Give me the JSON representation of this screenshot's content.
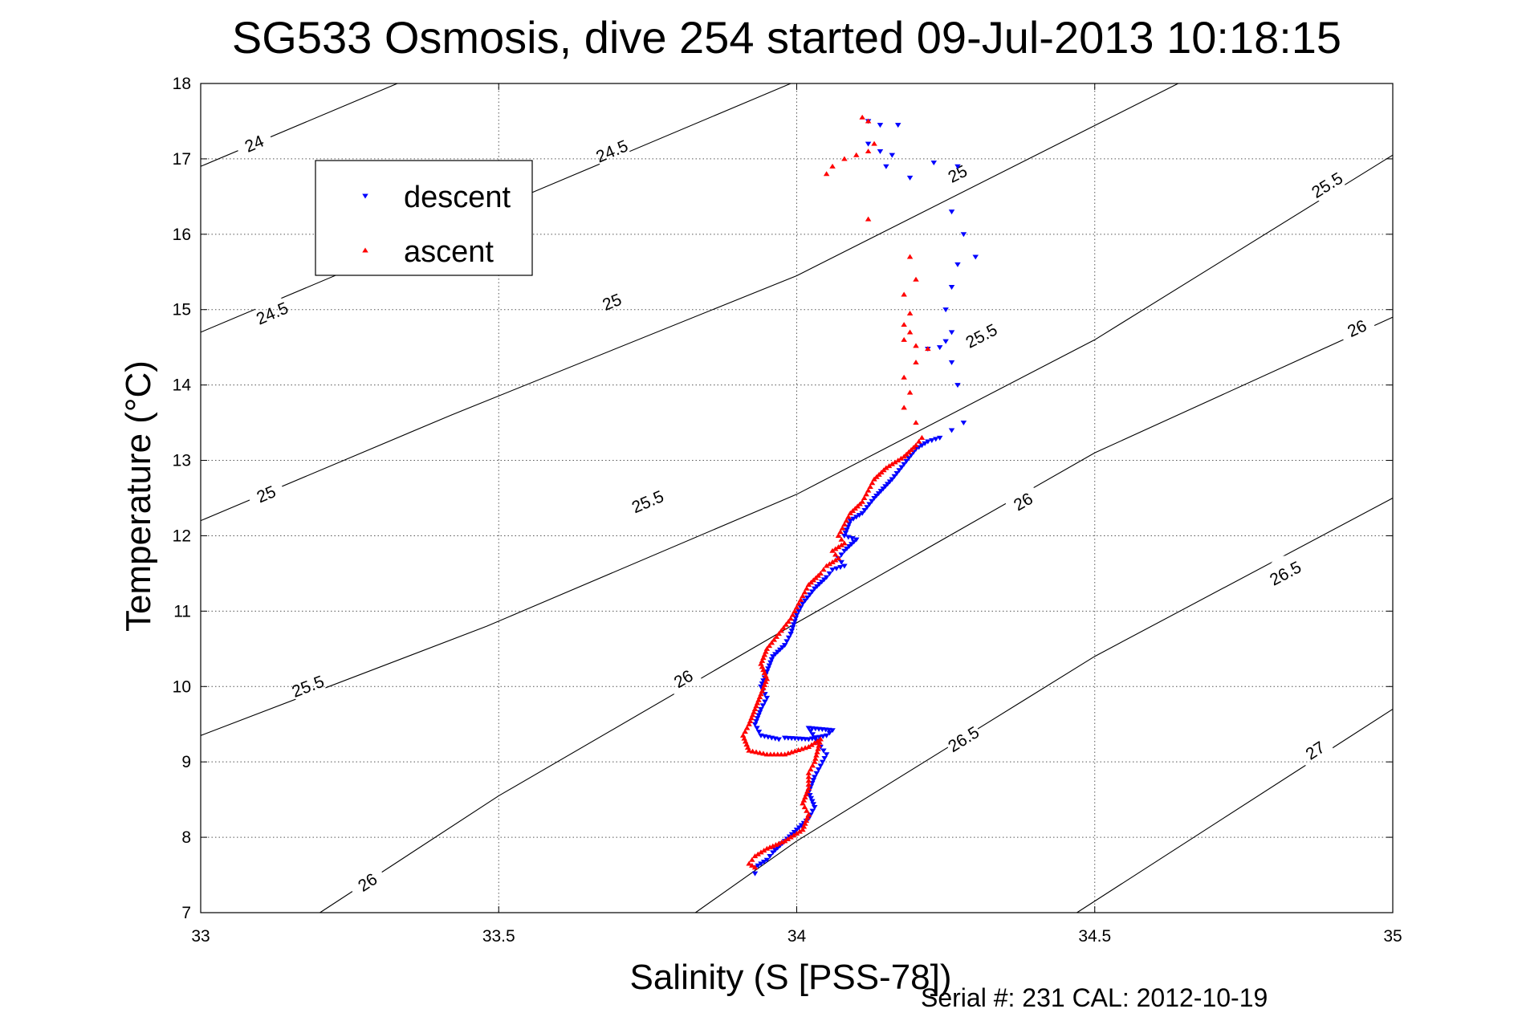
{
  "chart_data": {
    "type": "scatter",
    "title": "SG533 Osmosis, dive 254 started 09-Jul-2013 10:18:15",
    "xlabel": "Salinity (S [PSS-78])",
    "ylabel": "Temperature (°C)",
    "xlim": [
      33,
      35
    ],
    "ylim": [
      7,
      18
    ],
    "x_ticks": [
      "33",
      "33.5",
      "34",
      "34.5",
      "35"
    ],
    "y_ticks": [
      "7",
      "8",
      "9",
      "10",
      "11",
      "12",
      "13",
      "14",
      "15",
      "16",
      "17",
      "18"
    ],
    "grid": true,
    "legend_position": "top-left",
    "footer": "Serial #: 231  CAL: 2012-10-19",
    "series": [
      {
        "name": "descent",
        "color": "#0000ff",
        "marker": "triangle-down",
        "points": [
          [
            34.12,
            17.5
          ],
          [
            34.14,
            17.45
          ],
          [
            34.17,
            17.45
          ],
          [
            34.12,
            17.2
          ],
          [
            34.14,
            17.1
          ],
          [
            34.16,
            17.05
          ],
          [
            34.15,
            16.9
          ],
          [
            34.19,
            16.75
          ],
          [
            34.23,
            16.95
          ],
          [
            34.27,
            16.9
          ],
          [
            34.26,
            16.3
          ],
          [
            34.28,
            16.0
          ],
          [
            34.3,
            15.7
          ],
          [
            34.27,
            15.6
          ],
          [
            34.26,
            15.3
          ],
          [
            34.25,
            15.0
          ],
          [
            34.26,
            14.7
          ],
          [
            34.25,
            14.58
          ],
          [
            34.24,
            14.5
          ],
          [
            34.22,
            14.48
          ],
          [
            34.26,
            14.3
          ],
          [
            34.27,
            14.0
          ],
          [
            34.28,
            13.5
          ],
          [
            34.26,
            13.4
          ],
          [
            34.24,
            13.3
          ],
          [
            34.22,
            13.25
          ],
          [
            34.2,
            13.15
          ],
          [
            34.18,
            12.95
          ],
          [
            34.16,
            12.75
          ],
          [
            34.13,
            12.5
          ],
          [
            34.11,
            12.3
          ],
          [
            34.09,
            12.2
          ],
          [
            34.08,
            12.0
          ],
          [
            34.1,
            11.95
          ],
          [
            34.08,
            11.8
          ],
          [
            34.07,
            11.7
          ],
          [
            34.08,
            11.6
          ],
          [
            34.06,
            11.55
          ],
          [
            34.05,
            11.45
          ],
          [
            34.03,
            11.3
          ],
          [
            34.01,
            11.1
          ],
          [
            34.0,
            10.95
          ],
          [
            33.99,
            10.7
          ],
          [
            33.98,
            10.55
          ],
          [
            33.96,
            10.4
          ],
          [
            33.95,
            10.2
          ],
          [
            33.94,
            10.0
          ],
          [
            33.95,
            9.85
          ],
          [
            33.94,
            9.7
          ],
          [
            33.93,
            9.5
          ],
          [
            33.94,
            9.35
          ],
          [
            33.97,
            9.3
          ],
          [
            33.98,
            9.32
          ],
          [
            34.02,
            9.3
          ],
          [
            34.05,
            9.35
          ],
          [
            34.06,
            9.42
          ],
          [
            34.02,
            9.45
          ],
          [
            34.04,
            9.2
          ],
          [
            34.05,
            9.1
          ],
          [
            34.04,
            8.95
          ],
          [
            34.03,
            8.8
          ],
          [
            34.02,
            8.6
          ],
          [
            34.03,
            8.4
          ],
          [
            34.02,
            8.25
          ],
          [
            34.0,
            8.1
          ],
          [
            33.98,
            7.95
          ],
          [
            33.96,
            7.8
          ],
          [
            33.95,
            7.7
          ],
          [
            33.93,
            7.6
          ],
          [
            33.93,
            7.52
          ]
        ]
      },
      {
        "name": "ascent",
        "color": "#ff0000",
        "marker": "triangle-up",
        "points": [
          [
            34.11,
            17.55
          ],
          [
            34.12,
            17.5
          ],
          [
            34.13,
            17.2
          ],
          [
            34.12,
            17.1
          ],
          [
            34.1,
            17.05
          ],
          [
            34.08,
            17.0
          ],
          [
            34.06,
            16.9
          ],
          [
            34.05,
            16.8
          ],
          [
            34.12,
            16.2
          ],
          [
            34.19,
            15.7
          ],
          [
            34.2,
            15.4
          ],
          [
            34.18,
            15.2
          ],
          [
            34.19,
            14.95
          ],
          [
            34.18,
            14.8
          ],
          [
            34.19,
            14.7
          ],
          [
            34.18,
            14.6
          ],
          [
            34.2,
            14.52
          ],
          [
            34.22,
            14.48
          ],
          [
            34.2,
            14.3
          ],
          [
            34.18,
            14.1
          ],
          [
            34.19,
            13.9
          ],
          [
            34.18,
            13.7
          ],
          [
            34.2,
            13.5
          ],
          [
            34.21,
            13.3
          ],
          [
            34.2,
            13.2
          ],
          [
            34.18,
            13.05
          ],
          [
            34.15,
            12.9
          ],
          [
            34.13,
            12.75
          ],
          [
            34.12,
            12.6
          ],
          [
            34.11,
            12.45
          ],
          [
            34.09,
            12.3
          ],
          [
            34.08,
            12.15
          ],
          [
            34.07,
            12.0
          ],
          [
            34.08,
            11.9
          ],
          [
            34.06,
            11.8
          ],
          [
            34.07,
            11.7
          ],
          [
            34.05,
            11.6
          ],
          [
            34.04,
            11.5
          ],
          [
            34.02,
            11.35
          ],
          [
            34.01,
            11.2
          ],
          [
            34.0,
            11.05
          ],
          [
            33.99,
            10.9
          ],
          [
            33.97,
            10.7
          ],
          [
            33.95,
            10.5
          ],
          [
            33.94,
            10.3
          ],
          [
            33.95,
            10.1
          ],
          [
            33.94,
            9.9
          ],
          [
            33.93,
            9.7
          ],
          [
            33.92,
            9.5
          ],
          [
            33.91,
            9.35
          ],
          [
            33.92,
            9.15
          ],
          [
            33.95,
            9.1
          ],
          [
            33.98,
            9.1
          ],
          [
            34.02,
            9.2
          ],
          [
            34.04,
            9.3
          ],
          [
            34.03,
            9.0
          ],
          [
            34.02,
            8.85
          ],
          [
            34.02,
            8.65
          ],
          [
            34.01,
            8.45
          ],
          [
            34.02,
            8.3
          ],
          [
            34.01,
            8.1
          ],
          [
            33.98,
            7.95
          ],
          [
            33.95,
            7.85
          ],
          [
            33.93,
            7.75
          ],
          [
            33.92,
            7.65
          ],
          [
            33.93,
            7.6
          ]
        ]
      }
    ],
    "contours": [
      {
        "label": "24",
        "points": [
          [
            33.0,
            16.9
          ],
          [
            33.33,
            18.0
          ]
        ],
        "label_at": [
          [
            33.09,
            17.2
          ]
        ]
      },
      {
        "label": "24.5",
        "points": [
          [
            33.0,
            14.7
          ],
          [
            33.99,
            18.0
          ]
        ],
        "label_at": [
          [
            33.12,
            14.95
          ],
          [
            33.69,
            17.1
          ]
        ]
      },
      {
        "label": "25",
        "points": [
          [
            33.0,
            12.2
          ],
          [
            33.42,
            13.6
          ],
          [
            34.0,
            15.45
          ],
          [
            34.64,
            18.0
          ]
        ],
        "label_at": [
          [
            33.11,
            12.55
          ],
          [
            33.69,
            15.1
          ],
          [
            34.27,
            16.8
          ]
        ]
      },
      {
        "label": "25.5",
        "points": [
          [
            33.0,
            9.35
          ],
          [
            33.48,
            10.8
          ],
          [
            34.0,
            12.55
          ],
          [
            34.5,
            14.6
          ],
          [
            35.0,
            17.05
          ]
        ],
        "label_at": [
          [
            33.18,
            10.0
          ],
          [
            33.75,
            12.45
          ],
          [
            34.31,
            14.65
          ],
          [
            34.89,
            16.65
          ]
        ]
      },
      {
        "label": "26",
        "points": [
          [
            33.2,
            7.0
          ],
          [
            33.5,
            8.55
          ],
          [
            33.99,
            10.8
          ],
          [
            34.5,
            13.1
          ],
          [
            35.0,
            14.9
          ]
        ],
        "label_at": [
          [
            33.28,
            7.4
          ],
          [
            33.81,
            10.1
          ],
          [
            34.38,
            12.45
          ],
          [
            34.94,
            14.75
          ]
        ]
      },
      {
        "label": "26.5",
        "points": [
          [
            33.83,
            7.0
          ],
          [
            34.0,
            7.95
          ],
          [
            34.5,
            10.4
          ],
          [
            35.0,
            12.5
          ]
        ],
        "label_at": [
          [
            34.28,
            9.3
          ],
          [
            34.82,
            11.5
          ]
        ]
      },
      {
        "label": "27",
        "points": [
          [
            34.47,
            7.0
          ],
          [
            35.0,
            9.7
          ]
        ],
        "label_at": [
          [
            34.87,
            9.15
          ]
        ]
      }
    ]
  }
}
